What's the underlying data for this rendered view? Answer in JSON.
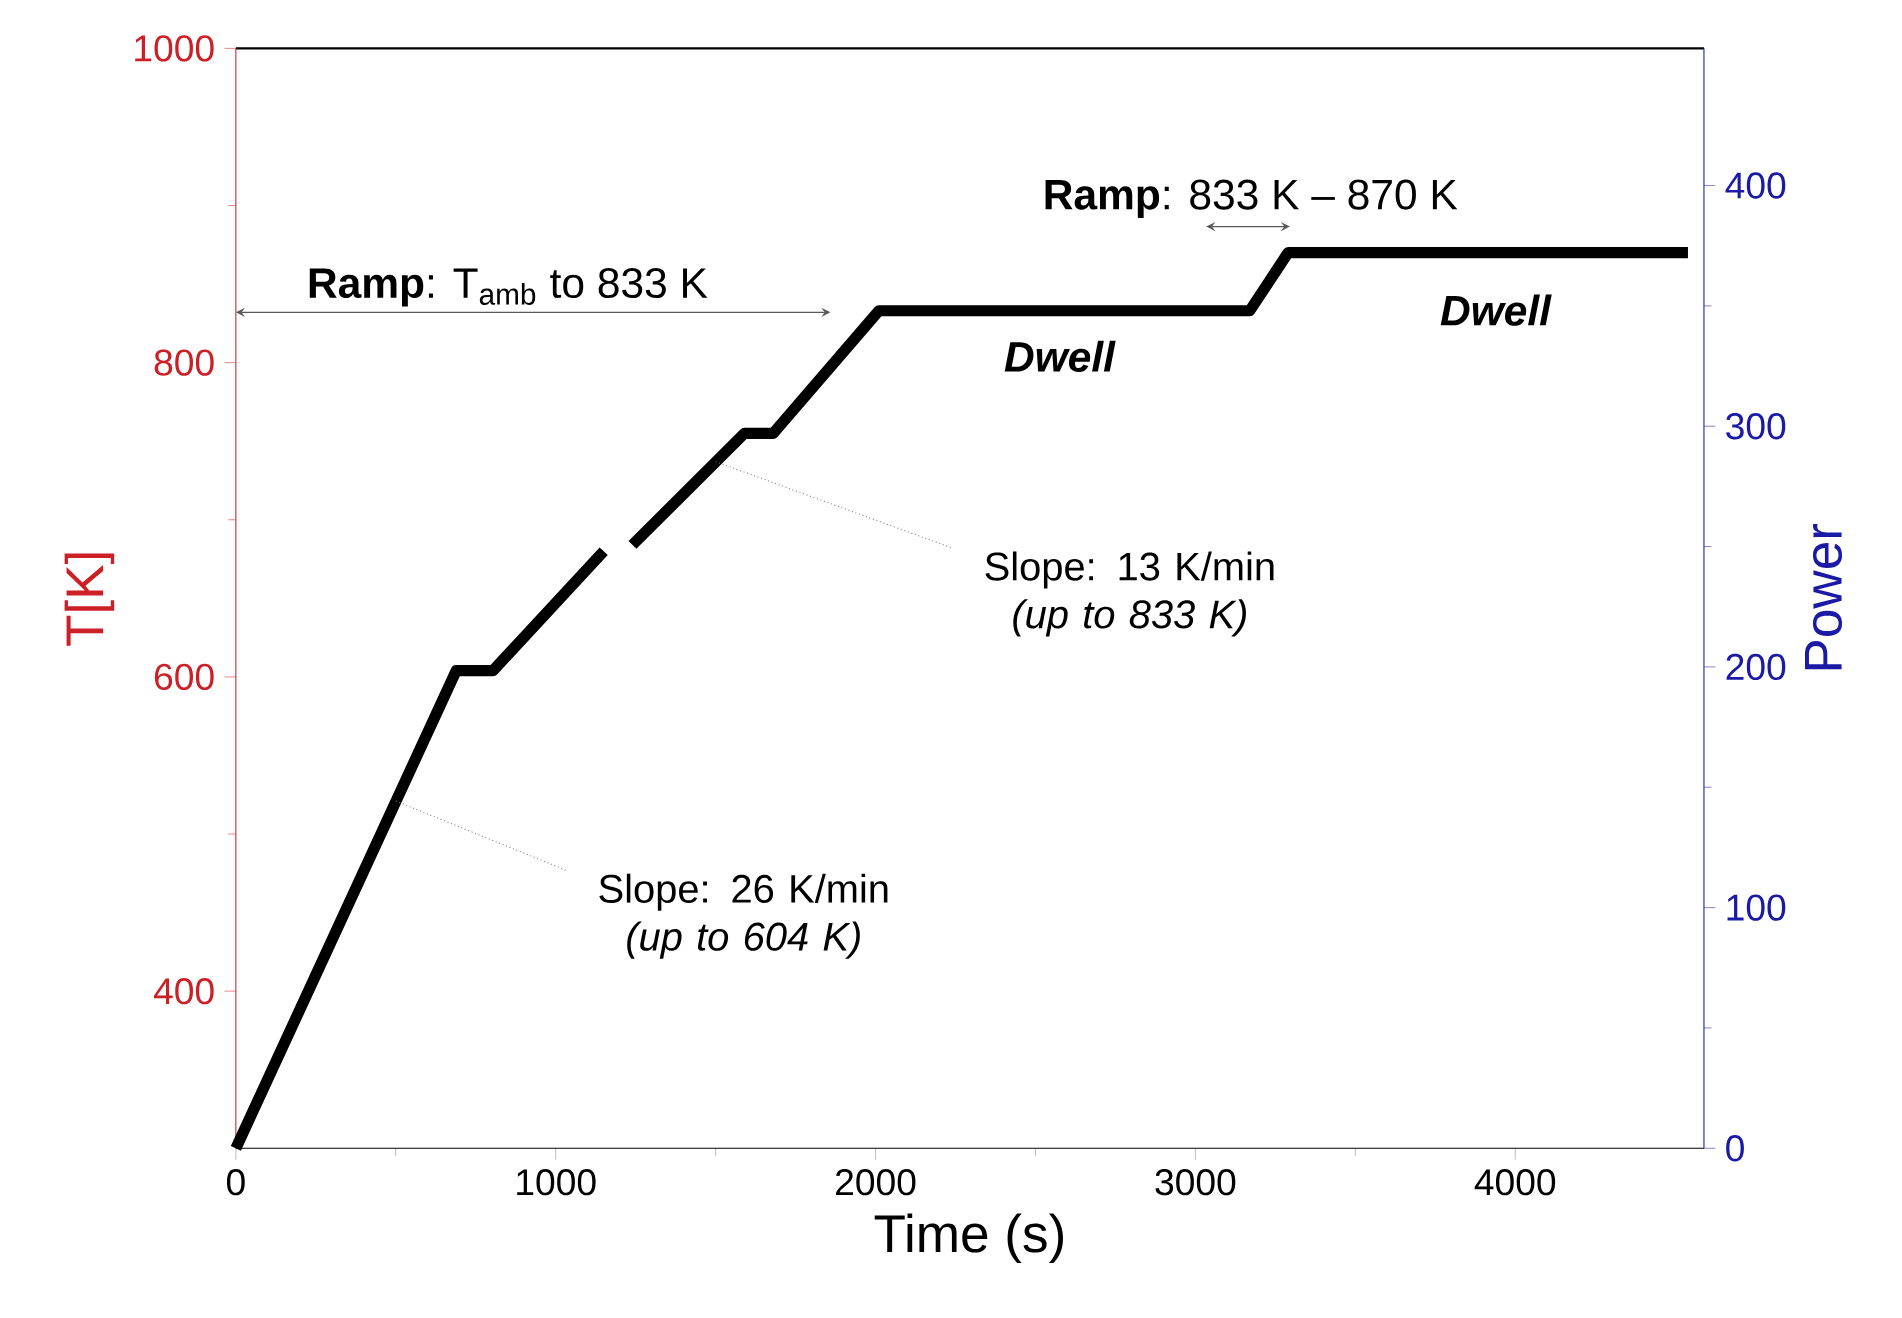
{
  "chart_data": {
    "type": "line",
    "xlabel": "Time (s)",
    "ylabel": "T[K]",
    "y2label": "Power",
    "xlim": [
      0,
      4590
    ],
    "ylim": [
      300,
      1000
    ],
    "y2lim": [
      0,
      457
    ],
    "xticks": [
      0,
      1000,
      2000,
      3000,
      4000
    ],
    "yticks": [
      400,
      600,
      800,
      1000
    ],
    "y2ticks": [
      0,
      100,
      200,
      300,
      400
    ],
    "x": [
      0,
      689,
      804,
      1150,
      1195,
      1240,
      1590,
      1680,
      2010,
      3170,
      3290,
      4540
    ],
    "series": [
      {
        "color": "#000000",
        "values": [
          300,
          604,
          604,
          680,
          null,
          684,
          755,
          755,
          833,
          833,
          870,
          870
        ]
      }
    ],
    "marker": "none",
    "line_style": "solid",
    "grid": false,
    "annotations": [
      "**Ramp**: T$_{amb}$ to 833 K",
      "**Ramp**: 833 K – 870 K",
      "Dwell",
      "Dwell",
      {
        "text": "Slope: 13 K/min *(up to 833 K)*",
        "x": 1500,
        "y": 737
      },
      {
        "text": "Slope: 26 K/min *(up to 604 K)*",
        "x": 500,
        "y": 521
      }
    ]
  }
}
